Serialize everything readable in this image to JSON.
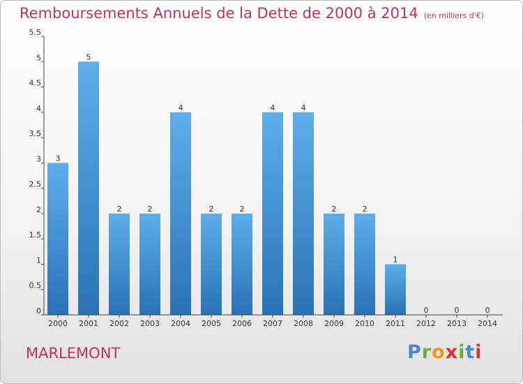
{
  "title": "Remboursements Annuels de la Dette de 2000 à 2014",
  "unit": "(en milliers d'€)",
  "commune": "MARLEMONT",
  "logo": {
    "letters": [
      "P",
      "r",
      "o",
      "x",
      "i",
      "t",
      "i"
    ],
    "colors": [
      "#4a86c8",
      "#6aae3c",
      "#e39a1f",
      "#d6362f",
      "#6aae3c",
      "#4a86c8",
      "#d6362f"
    ]
  },
  "chart_data": {
    "type": "bar",
    "title": "Remboursements Annuels de la Dette de 2000 à 2014",
    "xlabel": "",
    "ylabel": "",
    "categories": [
      "2000",
      "2001",
      "2002",
      "2003",
      "2004",
      "2005",
      "2006",
      "2007",
      "2008",
      "2009",
      "2010",
      "2011",
      "2012",
      "2013",
      "2014"
    ],
    "values": [
      3,
      5,
      2,
      2,
      4,
      2,
      2,
      4,
      4,
      2,
      2,
      1,
      0,
      0,
      0
    ],
    "value_labels": [
      "3",
      "5",
      "2",
      "2",
      "4",
      "2",
      "2",
      "4",
      "4",
      "2",
      "2",
      "1",
      "0",
      "0",
      "0"
    ],
    "ylim": [
      0,
      5.5
    ],
    "yticks": [
      0,
      0.5,
      1,
      1.5,
      2,
      2.5,
      3,
      3.5,
      4,
      4.5,
      5,
      5.5
    ],
    "ytick_labels": [
      "0",
      "0.5",
      "1",
      "1.5",
      "2",
      "2.5",
      "3",
      "3.5",
      "4",
      "4.5",
      "5",
      "5.5"
    ],
    "grid": false,
    "colors": {
      "bar_top": "#5eaeea",
      "bar_bottom": "#2a72b5",
      "axis": "#444444"
    }
  }
}
